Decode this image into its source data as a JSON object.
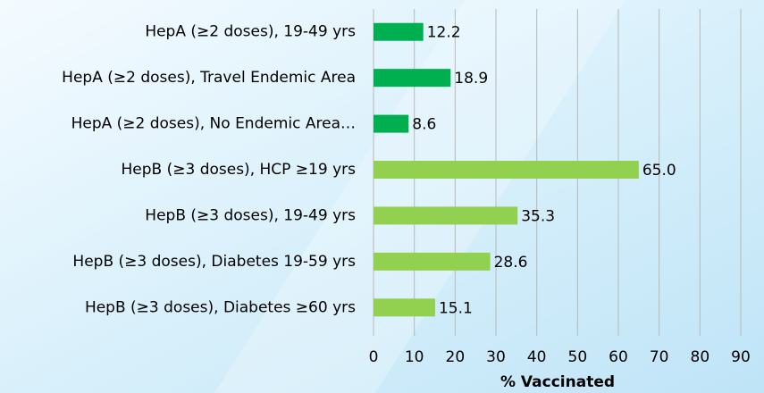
{
  "chart_data": {
    "type": "barh",
    "categories": [
      "HepA (≥2 doses), 19-49 yrs",
      "HepA (≥2 doses), Travel Endemic Area",
      "HepA (≥2 doses), No Endemic Area…",
      "HepB (≥3 doses), HCP ≥19 yrs",
      "HepB (≥3 doses), 19-49 yrs",
      "HepB (≥3 doses), Diabetes 19-59 yrs",
      "HepB (≥3 doses), Diabetes ≥60 yrs"
    ],
    "values": [
      12.2,
      18.9,
      8.6,
      65.0,
      35.3,
      28.6,
      15.1
    ],
    "value_labels": [
      "12.2",
      "18.9",
      "8.6",
      "65.0",
      "35.3",
      "28.6",
      "15.1"
    ],
    "colors": [
      "#00b050",
      "#00b050",
      "#00b050",
      "#92d050",
      "#92d050",
      "#92d050",
      "#92d050"
    ],
    "xlabel": "% Vaccinated",
    "xlim": [
      0,
      90
    ],
    "xticks": [
      0,
      10,
      20,
      30,
      40,
      50,
      60,
      70,
      80,
      90
    ],
    "grid": true
  }
}
